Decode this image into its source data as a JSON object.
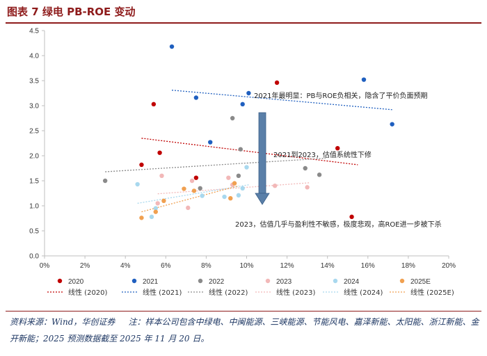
{
  "header": {
    "title": "图表 7  绿电 PB-ROE 变动"
  },
  "footer": {
    "source": "资料来源：Wind，华创证券",
    "note": "注：样本公司包含中绿电、中闽能源、三峡能源、节能风电、嘉泽新能、太阳能、浙江新能、金开新能；2025 预测数据截至 2025 年 11 月 20 日。"
  },
  "chart_data": {
    "type": "scatter",
    "title": "",
    "xlabel": "",
    "ylabel": "",
    "xlim": [
      0,
      20
    ],
    "ylim": [
      0,
      4.5
    ],
    "x_ticks": [
      "0%",
      "2%",
      "4%",
      "6%",
      "8%",
      "10%",
      "12%",
      "14%",
      "16%",
      "18%",
      "20%"
    ],
    "y_ticks": [
      "0.0",
      "0.5",
      "1.0",
      "1.5",
      "2.0",
      "2.5",
      "3.0",
      "3.5",
      "4.0",
      "4.5"
    ],
    "series": [
      {
        "name": "2020",
        "color": "#c00000",
        "points": [
          [
            4.8,
            1.82
          ],
          [
            5.4,
            3.03
          ],
          [
            5.7,
            2.06
          ],
          [
            7.5,
            1.56
          ],
          [
            11.5,
            3.46
          ],
          [
            14.5,
            2.15
          ],
          [
            15.2,
            0.78
          ]
        ],
        "trend_name": "线性 (2020)",
        "trend": [
          [
            4.8,
            2.35
          ],
          [
            15.5,
            1.82
          ]
        ]
      },
      {
        "name": "2021",
        "color": "#1f5fbf",
        "points": [
          [
            6.3,
            4.18
          ],
          [
            7.5,
            3.16
          ],
          [
            8.2,
            2.27
          ],
          [
            9.8,
            3.03
          ],
          [
            10.1,
            3.25
          ],
          [
            15.8,
            3.52
          ],
          [
            17.2,
            2.63
          ]
        ],
        "trend_name": "线性 (2021)",
        "trend": [
          [
            6.3,
            3.31
          ],
          [
            17.2,
            2.92
          ]
        ]
      },
      {
        "name": "2022",
        "color": "#8a8a8a",
        "points": [
          [
            3.0,
            1.5
          ],
          [
            7.7,
            1.35
          ],
          [
            9.3,
            2.75
          ],
          [
            9.6,
            1.6
          ],
          [
            9.7,
            2.13
          ],
          [
            12.9,
            1.75
          ],
          [
            13.6,
            1.62
          ]
        ],
        "trend_name": "线性 (2022)",
        "trend": [
          [
            3.0,
            1.68
          ],
          [
            13.9,
            1.95
          ]
        ]
      },
      {
        "name": "2023",
        "color": "#f2b8b8",
        "points": [
          [
            5.6,
            1.05
          ],
          [
            5.8,
            1.6
          ],
          [
            7.1,
            0.96
          ],
          [
            7.3,
            1.5
          ],
          [
            9.1,
            1.56
          ],
          [
            9.3,
            1.42
          ],
          [
            11.4,
            1.4
          ],
          [
            13.0,
            1.37
          ]
        ],
        "trend_name": "线性 (2023)",
        "trend": [
          [
            5.6,
            1.24
          ],
          [
            13.1,
            1.46
          ]
        ]
      },
      {
        "name": "2024",
        "color": "#a8d8ee",
        "points": [
          [
            4.6,
            1.43
          ],
          [
            5.3,
            0.78
          ],
          [
            5.5,
            0.95
          ],
          [
            7.8,
            1.2
          ],
          [
            8.9,
            1.18
          ],
          [
            9.6,
            1.21
          ],
          [
            9.8,
            1.35
          ],
          [
            10.0,
            1.77
          ]
        ],
        "trend_name": "线性 (2024)",
        "trend": [
          [
            4.6,
            1.05
          ],
          [
            10.1,
            1.42
          ]
        ]
      },
      {
        "name": "2025E",
        "color": "#f0a050",
        "points": [
          [
            4.8,
            0.76
          ],
          [
            5.5,
            0.88
          ],
          [
            5.9,
            1.1
          ],
          [
            6.9,
            1.34
          ],
          [
            7.4,
            1.3
          ],
          [
            9.2,
            1.15
          ],
          [
            9.4,
            1.45
          ]
        ],
        "trend_name": "线性 (2025E)",
        "trend": [
          [
            4.8,
            0.88
          ],
          [
            9.6,
            1.4
          ]
        ]
      }
    ],
    "annotations": {
      "a2021": "2021年最明显：PB与ROE负相关，隐含了平价负面预期",
      "a2023": "2021到2023，估值系统性下修",
      "a2025": "2023，估值几乎与盈利性不敏感，极度悲观，高ROE进一步被下杀"
    }
  }
}
